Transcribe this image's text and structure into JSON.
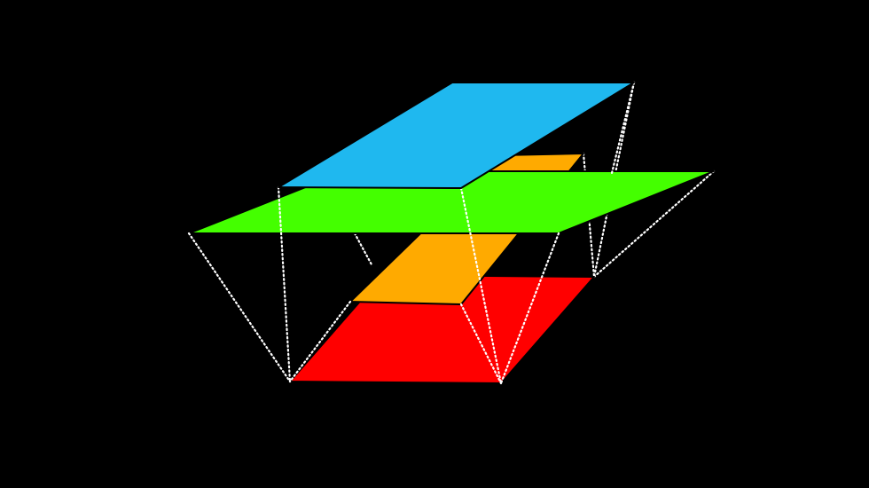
{
  "diagram": {
    "background_color": "#000000",
    "connector_color": "#ffffff",
    "connector_style": "dotted",
    "planes": [
      {
        "name": "blue-plane",
        "color": "#1fb8ef"
      },
      {
        "name": "green-plane",
        "color": "#44ff00"
      },
      {
        "name": "orange-plane",
        "color": "#ffaa00"
      },
      {
        "name": "red-plane",
        "color": "#ff0000"
      }
    ]
  }
}
